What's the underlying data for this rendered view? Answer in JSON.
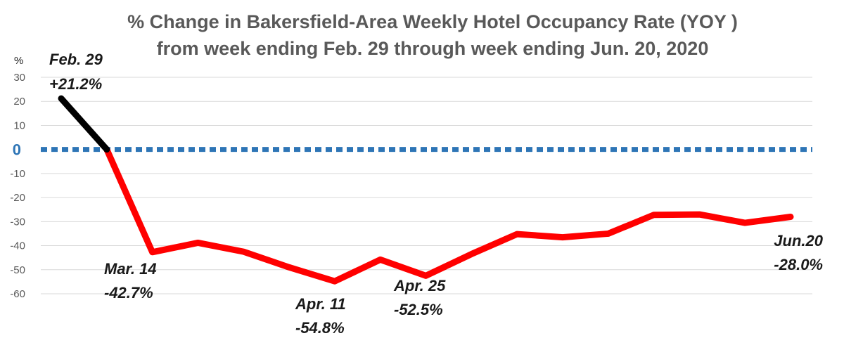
{
  "chart_data": {
    "type": "line",
    "title": "%  Change in Bakersfield-Area Weekly Hotel Occupancy Rate (YOY )",
    "subtitle": "from week ending Feb. 29 through week ending Jun. 20, 2020",
    "ylabel": "%",
    "xlabel": "",
    "ylim": [
      -60,
      30
    ],
    "yticks": [
      "30",
      "20",
      "10",
      "0",
      "-10",
      "-20",
      "-30",
      "-40",
      "-50",
      "-60"
    ],
    "grid": true,
    "legend": "none",
    "series": [
      {
        "values": [
          21.2,
          0,
          -42.7,
          -38.8,
          -42.5,
          -49.0,
          -54.8,
          -45.8,
          -52.5,
          -43.5,
          -35.2,
          -36.5,
          -35.0,
          -27.2,
          -27.0,
          -30.5,
          -28.0
        ]
      }
    ],
    "baseline": {
      "value": 0,
      "color": "#2e75b6"
    },
    "segment_colors": {
      "early": "#000000",
      "late": "#ff0000"
    },
    "annotations": [
      {
        "index": 0,
        "date": "Feb. 29",
        "value": "+21.2%"
      },
      {
        "index": 2,
        "date": "Mar. 14",
        "value": "-42.7%"
      },
      {
        "index": 6,
        "date": "Apr. 11",
        "value": "-54.8%"
      },
      {
        "index": 8,
        "date": "Apr. 25",
        "value": "-52.5%"
      },
      {
        "index": 16,
        "date": "Jun.20",
        "value": "-28.0%"
      }
    ]
  }
}
